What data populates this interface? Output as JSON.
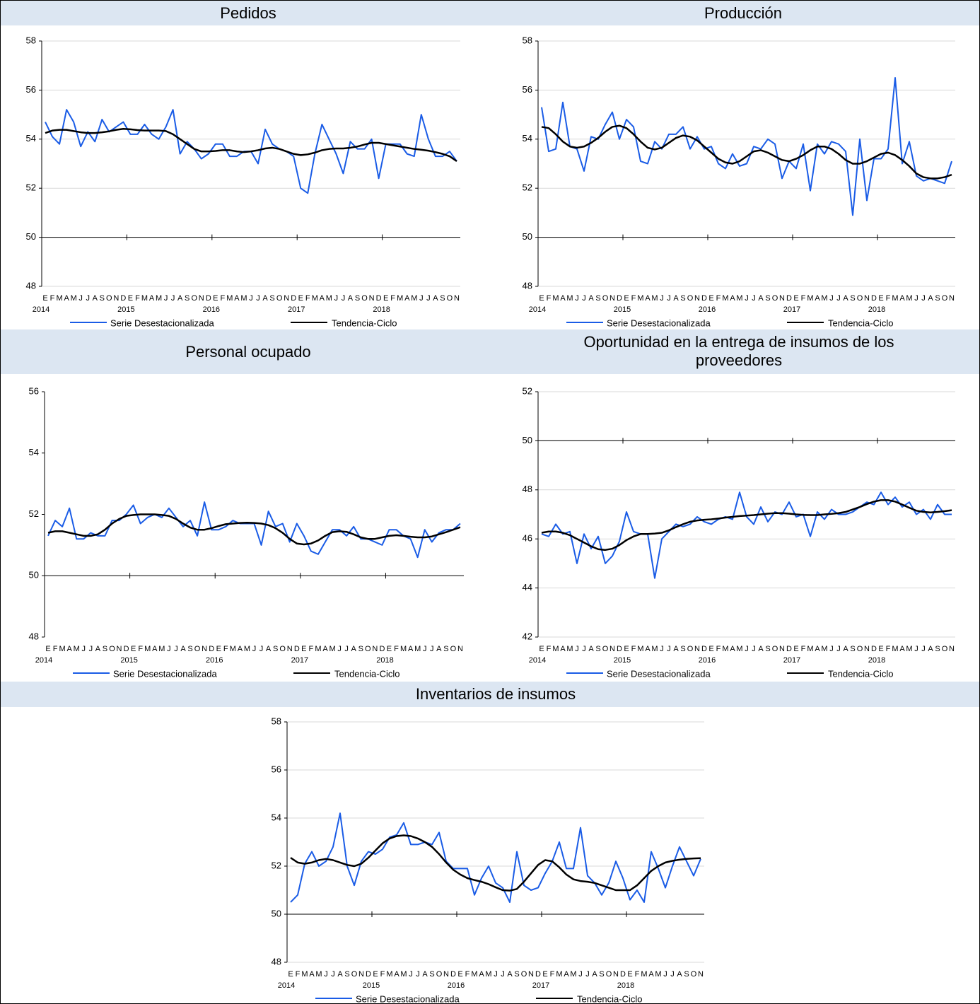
{
  "chart_data": [
    {
      "type": "line",
      "title": "Pedidos",
      "categories": [
        "E",
        "F",
        "M",
        "A",
        "M",
        "J",
        "J",
        "A",
        "S",
        "O",
        "N",
        "D",
        "E",
        "F",
        "M",
        "A",
        "M",
        "J",
        "J",
        "A",
        "S",
        "O",
        "N",
        "D",
        "E",
        "F",
        "M",
        "A",
        "M",
        "J",
        "J",
        "A",
        "S",
        "O",
        "N",
        "D",
        "E",
        "F",
        "M",
        "A",
        "M",
        "J",
        "J",
        "A",
        "S",
        "O",
        "N",
        "D",
        "E",
        "F",
        "M",
        "A",
        "M",
        "J",
        "J",
        "A",
        "S",
        "O",
        "N"
      ],
      "year_labels": [
        "2014",
        "2015",
        "2016",
        "2017",
        "2018"
      ],
      "ylim": [
        48,
        58
      ],
      "yticks": [
        48,
        50,
        52,
        54,
        56,
        58
      ],
      "x_axis_crosses": 50,
      "grid": true,
      "series": [
        {
          "name": "Serie Desestacionalizada",
          "color": "#1a5ce6",
          "values": [
            54.7,
            54.1,
            53.8,
            55.2,
            54.7,
            53.7,
            54.3,
            53.9,
            54.8,
            54.3,
            54.5,
            54.7,
            54.2,
            54.2,
            54.6,
            54.2,
            54.0,
            54.5,
            55.2,
            53.4,
            53.9,
            53.6,
            53.2,
            53.4,
            53.8,
            53.8,
            53.3,
            53.3,
            53.5,
            53.5,
            53.0,
            54.4,
            53.8,
            53.6,
            53.5,
            53.3,
            52.0,
            51.8,
            53.4,
            54.6,
            54.0,
            53.4,
            52.6,
            53.9,
            53.6,
            53.6,
            54.0,
            52.4,
            53.8,
            53.8,
            53.8,
            53.4,
            53.3,
            55.0,
            54.0,
            53.3,
            53.3,
            53.5,
            53.1
          ]
        },
        {
          "name": "Tendencia-Ciclo",
          "color": "#000000",
          "values": [
            54.25,
            54.35,
            54.38,
            54.38,
            54.33,
            54.28,
            54.25,
            54.25,
            54.28,
            54.32,
            54.38,
            54.42,
            54.4,
            54.37,
            54.35,
            54.35,
            54.35,
            54.33,
            54.2,
            54.0,
            53.8,
            53.6,
            53.5,
            53.5,
            53.52,
            53.55,
            53.55,
            53.5,
            53.47,
            53.5,
            53.55,
            53.62,
            53.65,
            53.6,
            53.5,
            53.4,
            53.35,
            53.38,
            53.45,
            53.55,
            53.6,
            53.62,
            53.62,
            53.65,
            53.7,
            53.78,
            53.85,
            53.85,
            53.8,
            53.75,
            53.7,
            53.65,
            53.6,
            53.57,
            53.53,
            53.47,
            53.4,
            53.3,
            53.1
          ]
        }
      ]
    },
    {
      "type": "line",
      "title": "Producción",
      "categories": [
        "E",
        "F",
        "M",
        "A",
        "M",
        "J",
        "J",
        "A",
        "S",
        "O",
        "N",
        "D",
        "E",
        "F",
        "M",
        "A",
        "M",
        "J",
        "J",
        "A",
        "S",
        "O",
        "N",
        "D",
        "E",
        "F",
        "M",
        "A",
        "M",
        "J",
        "J",
        "A",
        "S",
        "O",
        "N",
        "D",
        "E",
        "F",
        "M",
        "A",
        "M",
        "J",
        "J",
        "A",
        "S",
        "O",
        "N",
        "D",
        "E",
        "F",
        "M",
        "A",
        "M",
        "J",
        "J",
        "A",
        "S",
        "O",
        "N"
      ],
      "year_labels": [
        "2014",
        "2015",
        "2016",
        "2017",
        "2018"
      ],
      "ylim": [
        48,
        58
      ],
      "yticks": [
        48,
        50,
        52,
        54,
        56,
        58
      ],
      "x_axis_crosses": 50,
      "grid": true,
      "series": [
        {
          "name": "Serie Desestacionalizada",
          "color": "#1a5ce6",
          "values": [
            55.3,
            53.5,
            53.6,
            55.5,
            53.7,
            53.6,
            52.7,
            54.1,
            54.0,
            54.6,
            55.1,
            54.0,
            54.8,
            54.5,
            53.1,
            53.0,
            53.9,
            53.6,
            54.2,
            54.2,
            54.5,
            53.6,
            54.1,
            53.6,
            53.7,
            53.0,
            52.8,
            53.4,
            52.9,
            53.0,
            53.7,
            53.6,
            54.0,
            53.8,
            52.4,
            53.1,
            52.8,
            53.8,
            51.9,
            53.8,
            53.4,
            53.9,
            53.8,
            53.5,
            50.9,
            54.0,
            51.5,
            53.2,
            53.2,
            53.6,
            56.5,
            53.0,
            53.9,
            52.5,
            52.3,
            52.4,
            52.3,
            52.2,
            53.1
          ]
        },
        {
          "name": "Tendencia-Ciclo",
          "color": "#000000",
          "values": [
            54.5,
            54.45,
            54.2,
            53.9,
            53.7,
            53.65,
            53.7,
            53.85,
            54.05,
            54.3,
            54.5,
            54.55,
            54.45,
            54.2,
            53.9,
            53.65,
            53.58,
            53.65,
            53.85,
            54.05,
            54.15,
            54.1,
            53.95,
            53.7,
            53.45,
            53.2,
            53.05,
            53.0,
            53.1,
            53.3,
            53.5,
            53.55,
            53.45,
            53.3,
            53.15,
            53.1,
            53.2,
            53.35,
            53.55,
            53.7,
            53.7,
            53.6,
            53.4,
            53.15,
            53.0,
            53.0,
            53.1,
            53.25,
            53.4,
            53.45,
            53.35,
            53.15,
            52.9,
            52.6,
            52.45,
            52.4,
            52.4,
            52.45,
            52.55
          ]
        }
      ]
    },
    {
      "type": "line",
      "title": "Personal ocupado",
      "categories": [
        "E",
        "F",
        "M",
        "A",
        "M",
        "J",
        "J",
        "A",
        "S",
        "O",
        "N",
        "D",
        "E",
        "F",
        "M",
        "A",
        "M",
        "J",
        "J",
        "A",
        "S",
        "O",
        "N",
        "D",
        "E",
        "F",
        "M",
        "A",
        "M",
        "J",
        "J",
        "A",
        "S",
        "O",
        "N",
        "D",
        "E",
        "F",
        "M",
        "A",
        "M",
        "J",
        "J",
        "A",
        "S",
        "O",
        "N",
        "D",
        "E",
        "F",
        "M",
        "A",
        "M",
        "J",
        "J",
        "A",
        "S",
        "O",
        "N"
      ],
      "year_labels": [
        "2014",
        "2015",
        "2016",
        "2017",
        "2018"
      ],
      "ylim": [
        48,
        56
      ],
      "yticks": [
        48,
        50,
        52,
        54,
        56
      ],
      "x_axis_crosses": 50,
      "grid": false,
      "series": [
        {
          "name": "Serie Desestacionalizada",
          "color": "#1a5ce6",
          "values": [
            51.3,
            51.8,
            51.6,
            52.2,
            51.2,
            51.2,
            51.4,
            51.3,
            51.3,
            51.8,
            51.8,
            52.0,
            52.3,
            51.7,
            51.9,
            52.0,
            51.9,
            52.2,
            51.9,
            51.6,
            51.8,
            51.3,
            52.4,
            51.5,
            51.5,
            51.6,
            51.8,
            51.7,
            51.7,
            51.7,
            51.0,
            52.1,
            51.6,
            51.7,
            51.1,
            51.7,
            51.3,
            50.8,
            50.7,
            51.1,
            51.5,
            51.5,
            51.3,
            51.6,
            51.2,
            51.2,
            51.1,
            51.0,
            51.5,
            51.5,
            51.3,
            51.2,
            50.6,
            51.5,
            51.1,
            51.4,
            51.5,
            51.5,
            51.7
          ]
        },
        {
          "name": "Tendencia-Ciclo",
          "color": "#000000",
          "values": [
            51.4,
            51.45,
            51.45,
            51.4,
            51.35,
            51.3,
            51.3,
            51.35,
            51.5,
            51.7,
            51.85,
            51.95,
            51.98,
            52.0,
            52.0,
            52.0,
            51.98,
            51.95,
            51.85,
            51.7,
            51.57,
            51.5,
            51.5,
            51.55,
            51.62,
            51.68,
            51.7,
            51.72,
            51.73,
            51.72,
            51.7,
            51.65,
            51.55,
            51.4,
            51.2,
            51.05,
            51.02,
            51.05,
            51.15,
            51.3,
            51.42,
            51.45,
            51.43,
            51.35,
            51.25,
            51.2,
            51.2,
            51.25,
            51.3,
            51.32,
            51.3,
            51.27,
            51.25,
            51.25,
            51.28,
            51.35,
            51.42,
            51.5,
            51.58
          ]
        }
      ]
    },
    {
      "type": "line",
      "title": "Oportunidad en la entrega de insumos de los proveedores",
      "categories": [
        "E",
        "F",
        "M",
        "A",
        "M",
        "J",
        "J",
        "A",
        "S",
        "O",
        "N",
        "D",
        "E",
        "F",
        "M",
        "A",
        "M",
        "J",
        "J",
        "A",
        "S",
        "O",
        "N",
        "D",
        "E",
        "F",
        "M",
        "A",
        "M",
        "J",
        "J",
        "A",
        "S",
        "O",
        "N",
        "D",
        "E",
        "F",
        "M",
        "A",
        "M",
        "J",
        "J",
        "A",
        "S",
        "O",
        "N",
        "D",
        "E",
        "F",
        "M",
        "A",
        "M",
        "J",
        "J",
        "A",
        "S",
        "O",
        "N"
      ],
      "year_labels": [
        "2014",
        "2015",
        "2016",
        "2017",
        "2018"
      ],
      "ylim": [
        42,
        52
      ],
      "yticks": [
        42,
        44,
        46,
        48,
        50,
        52
      ],
      "x_axis_crosses": 50,
      "grid": true,
      "series": [
        {
          "name": "Serie Desestacionalizada",
          "color": "#1a5ce6",
          "values": [
            46.2,
            46.1,
            46.6,
            46.2,
            46.3,
            45.0,
            46.2,
            45.6,
            46.1,
            45.0,
            45.3,
            45.9,
            47.1,
            46.3,
            46.2,
            46.2,
            44.4,
            46.0,
            46.3,
            46.6,
            46.5,
            46.6,
            46.9,
            46.7,
            46.6,
            46.8,
            46.9,
            46.8,
            47.9,
            46.9,
            46.6,
            47.3,
            46.7,
            47.1,
            47.0,
            47.5,
            46.9,
            47.0,
            46.1,
            47.1,
            46.8,
            47.2,
            47.0,
            47.0,
            47.1,
            47.3,
            47.5,
            47.4,
            47.9,
            47.4,
            47.7,
            47.3,
            47.5,
            47.0,
            47.2,
            46.8,
            47.4,
            47.0,
            47.0
          ]
        },
        {
          "name": "Tendencia-Ciclo",
          "color": "#000000",
          "values": [
            46.25,
            46.3,
            46.3,
            46.25,
            46.15,
            46.0,
            45.85,
            45.7,
            45.58,
            45.55,
            45.6,
            45.75,
            45.95,
            46.1,
            46.2,
            46.2,
            46.22,
            46.25,
            46.35,
            46.48,
            46.6,
            46.7,
            46.75,
            46.78,
            46.8,
            46.83,
            46.87,
            46.9,
            46.93,
            46.95,
            46.97,
            47.0,
            47.03,
            47.05,
            47.05,
            47.03,
            47.0,
            46.98,
            46.97,
            46.97,
            47.0,
            47.02,
            47.05,
            47.1,
            47.2,
            47.3,
            47.42,
            47.52,
            47.58,
            47.58,
            47.52,
            47.4,
            47.27,
            47.15,
            47.1,
            47.08,
            47.1,
            47.13,
            47.17
          ]
        }
      ]
    },
    {
      "type": "line",
      "title": "Inventarios de insumos",
      "categories": [
        "E",
        "F",
        "M",
        "A",
        "M",
        "J",
        "J",
        "A",
        "S",
        "O",
        "N",
        "D",
        "E",
        "F",
        "M",
        "A",
        "M",
        "J",
        "J",
        "A",
        "S",
        "O",
        "N",
        "D",
        "E",
        "F",
        "M",
        "A",
        "M",
        "J",
        "J",
        "A",
        "S",
        "O",
        "N",
        "D",
        "E",
        "F",
        "M",
        "A",
        "M",
        "J",
        "J",
        "A",
        "S",
        "O",
        "N",
        "D",
        "E",
        "F",
        "M",
        "A",
        "M",
        "J",
        "J",
        "A",
        "S",
        "O",
        "N"
      ],
      "year_labels": [
        "2014",
        "2015",
        "2016",
        "2017",
        "2018"
      ],
      "ylim": [
        48,
        58
      ],
      "yticks": [
        48,
        50,
        52,
        54,
        56,
        58
      ],
      "x_axis_crosses": 50,
      "grid": true,
      "series": [
        {
          "name": "Serie Desestacionalizada",
          "color": "#1a5ce6",
          "values": [
            50.5,
            50.8,
            52.1,
            52.6,
            52.0,
            52.2,
            52.8,
            54.2,
            52.0,
            51.2,
            52.2,
            52.6,
            52.5,
            52.7,
            53.2,
            53.3,
            53.8,
            52.9,
            52.9,
            53.0,
            52.9,
            53.4,
            52.2,
            51.9,
            51.9,
            51.9,
            50.8,
            51.5,
            52.0,
            51.3,
            51.1,
            50.5,
            52.6,
            51.2,
            51.0,
            51.1,
            51.7,
            52.2,
            53.0,
            51.9,
            51.9,
            53.6,
            51.6,
            51.3,
            50.8,
            51.3,
            52.2,
            51.5,
            50.6,
            51.0,
            50.5,
            52.6,
            51.9,
            51.1,
            52.0,
            52.8,
            52.2,
            51.6,
            52.3
          ]
        },
        {
          "name": "Tendencia-Ciclo",
          "color": "#000000",
          "values": [
            52.35,
            52.15,
            52.1,
            52.15,
            52.25,
            52.3,
            52.25,
            52.15,
            52.05,
            52.0,
            52.1,
            52.35,
            52.65,
            52.95,
            53.15,
            53.25,
            53.28,
            53.25,
            53.15,
            53.0,
            52.8,
            52.5,
            52.15,
            51.85,
            51.65,
            51.5,
            51.42,
            51.35,
            51.25,
            51.12,
            51.0,
            50.98,
            51.05,
            51.35,
            51.7,
            52.05,
            52.25,
            52.2,
            51.95,
            51.65,
            51.45,
            51.38,
            51.35,
            51.3,
            51.2,
            51.1,
            51.0,
            51.0,
            51.0,
            51.2,
            51.5,
            51.8,
            52.0,
            52.15,
            52.22,
            52.27,
            52.3,
            52.32,
            52.33
          ]
        }
      ]
    }
  ]
}
